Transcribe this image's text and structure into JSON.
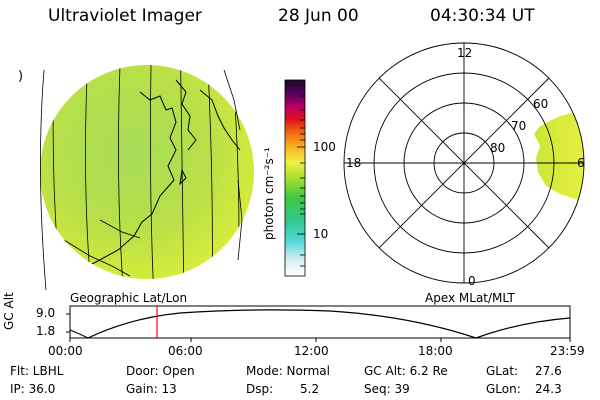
{
  "header": {
    "title": "Ultraviolet Imager",
    "date": "28 Jun 00",
    "time": "04:30:34 UT"
  },
  "colorbar": {
    "unit_label": "photon cm⁻²s⁻¹",
    "ticks": [
      "100",
      "10"
    ]
  },
  "polar_plot": {
    "hour_labels": [
      "12",
      "18",
      "6",
      "0"
    ],
    "lat_labels": [
      "60",
      "70",
      "80"
    ]
  },
  "map_labels": {
    "left": "Geographic Lat/Lon",
    "right": "Apex MLat/MLT"
  },
  "altitude_plot": {
    "ylabel": "GC Alt",
    "yticks": [
      "9.0",
      "1.8"
    ],
    "xticks": [
      "00:00",
      "06:00",
      "12:00",
      "18:00",
      "23:59"
    ]
  },
  "info": {
    "flt": "Flt: LBHL",
    "ip": "IP: 36.0",
    "door": "Door: Open",
    "gain": "Gain: 13",
    "mode": "Mode: Normal",
    "dsp_label": "Dsp:",
    "dsp_value": "5.2",
    "gcalt": "GC Alt: 6.2 Re",
    "seq": "Seq: 39",
    "glat_label": "GLat:",
    "glat_value": "27.6",
    "glon_label": "GLon:",
    "glon_value": "24.3"
  },
  "colors": {
    "disk": "#c8e64a",
    "colorbar_top": "#1a0a2a",
    "marker": "#ff0000"
  }
}
